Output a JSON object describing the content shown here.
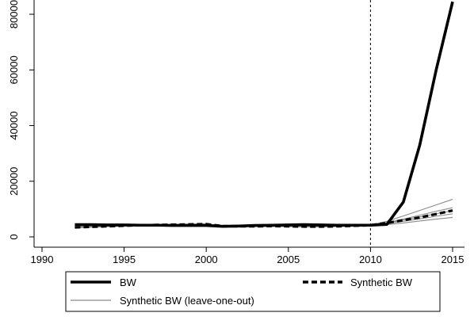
{
  "chart_data": {
    "type": "line",
    "title": "",
    "xlabel": "",
    "ylabel": "",
    "xlim": [
      1990,
      2015.6
    ],
    "ylim": [
      -4000,
      87000
    ],
    "x_ticks": [
      1990,
      1995,
      2000,
      2005,
      2010,
      2015
    ],
    "y_ticks": [
      0,
      20000,
      40000,
      60000,
      80000
    ],
    "grid": false,
    "vertical_reference_line": {
      "x": 2010,
      "style": "dashed"
    },
    "series": [
      {
        "name": "BW",
        "style": "solid-thick",
        "color": "#000000",
        "x": [
          1992,
          1993,
          1994,
          1995,
          1996,
          1997,
          1998,
          1999,
          2000,
          2001,
          2002,
          2003,
          2004,
          2005,
          2006,
          2007,
          2008,
          2009,
          2010,
          2011,
          2012,
          2013,
          2014,
          2015
        ],
        "values": [
          4400,
          4400,
          4300,
          4300,
          4200,
          4200,
          4100,
          4100,
          4100,
          3800,
          3900,
          4100,
          4200,
          4300,
          4400,
          4300,
          4200,
          4200,
          4200,
          4500,
          12500,
          33000,
          60000,
          84500
        ]
      },
      {
        "name": "Synthetic BW",
        "style": "dashed-thick",
        "color": "#000000",
        "x": [
          1992,
          1993,
          1994,
          1995,
          1996,
          1997,
          1998,
          1999,
          2000,
          2001,
          2002,
          2003,
          2004,
          2005,
          2006,
          2007,
          2008,
          2009,
          2010,
          2011,
          2012,
          2013,
          2014,
          2015
        ],
        "values": [
          3400,
          3600,
          3800,
          4000,
          4200,
          4300,
          4400,
          4500,
          4600,
          3900,
          3800,
          3800,
          3900,
          3800,
          3700,
          3700,
          3800,
          4000,
          4200,
          5000,
          6000,
          7000,
          8200,
          9500
        ]
      },
      {
        "name": "Synthetic BW (leave-one-out)",
        "style": "solid-thin",
        "color": "#8a8a8a",
        "x": [
          1992,
          1993,
          1994,
          1995,
          1996,
          1997,
          1998,
          1999,
          2000,
          2001,
          2002,
          2003,
          2004,
          2005,
          2006,
          2007,
          2008,
          2009,
          2010,
          2011,
          2012,
          2013,
          2014,
          2015
        ],
        "lines": [
          [
            3300,
            3500,
            3700,
            3900,
            4100,
            4200,
            4300,
            4400,
            4500,
            3800,
            3700,
            3700,
            3800,
            3700,
            3600,
            3600,
            3700,
            3900,
            4300,
            5600,
            7500,
            9500,
            11500,
            13500
          ],
          [
            3500,
            3700,
            3900,
            4100,
            4300,
            4400,
            4500,
            4600,
            4700,
            4000,
            3900,
            3900,
            4000,
            3900,
            3800,
            3800,
            3900,
            4100,
            4200,
            5100,
            6400,
            7800,
            9200,
            10500
          ],
          [
            3400,
            3600,
            3800,
            4000,
            4200,
            4300,
            4400,
            4500,
            4600,
            3900,
            3800,
            3800,
            3900,
            3800,
            3700,
            3700,
            3800,
            4000,
            4100,
            4800,
            5600,
            6500,
            7400,
            8300
          ],
          [
            3600,
            3700,
            3900,
            4000,
            4100,
            4200,
            4300,
            4400,
            4500,
            4000,
            3900,
            3900,
            4000,
            4000,
            3900,
            3900,
            4000,
            4100,
            4000,
            4400,
            5000,
            5700,
            6400,
            7000
          ],
          [
            3300,
            3500,
            3700,
            3900,
            4100,
            4200,
            4300,
            4400,
            4500,
            3800,
            3700,
            3700,
            3800,
            3700,
            3600,
            3600,
            3700,
            3900,
            4200,
            5000,
            6100,
            7200,
            8300,
            9400
          ]
        ]
      }
    ],
    "legend": {
      "placement": "bottom",
      "items": [
        {
          "label": "BW",
          "style": "solid-thick"
        },
        {
          "label": "Synthetic BW",
          "style": "dashed-thick"
        },
        {
          "label": "Synthetic BW (leave-one-out)",
          "style": "solid-thin"
        }
      ]
    }
  }
}
